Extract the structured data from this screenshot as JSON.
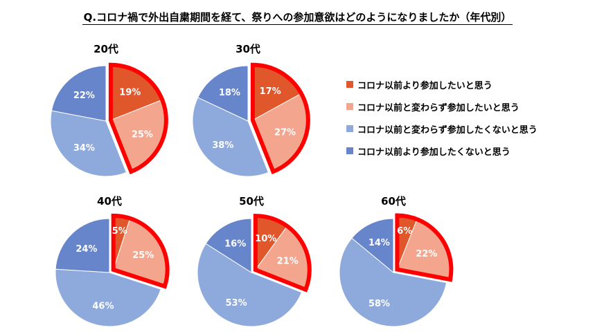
{
  "title": "Q.コロナ禍で外出自粛期間を経て、祭りへの参加意欲はどのようになりましたか（年代別）",
  "colors": {
    "series": [
      "#E0572B",
      "#F4A58E",
      "#8EA9DB",
      "#6685CA"
    ],
    "highlight": "#FF0000",
    "label_text": "#FFFFFF",
    "title_text": "#000000"
  },
  "legend": [
    "コロナ以前より参加したいと思う",
    "コロナ以前と変わらず参加したいと思う",
    "コロナ以前と変わらず参加したくないと思う",
    "コロナ以前より参加したくないと思う"
  ],
  "chart_data": [
    {
      "type": "pie",
      "title": "20代",
      "categories": [
        "コロナ以前より参加したいと思う",
        "コロナ以前と変わらず参加したいと思う",
        "コロナ以前と変わらず参加したくないと思う",
        "コロナ以前より参加したくないと思う"
      ],
      "values": [
        19,
        25,
        34,
        22
      ],
      "labels": [
        "19%",
        "25%",
        "34%",
        "22%"
      ]
    },
    {
      "type": "pie",
      "title": "30代",
      "categories": [
        "コロナ以前より参加したいと思う",
        "コロナ以前と変わらず参加したいと思う",
        "コロナ以前と変わらず参加したくないと思う",
        "コロナ以前より参加したくないと思う"
      ],
      "values": [
        17,
        27,
        38,
        18
      ],
      "labels": [
        "17%",
        "27%",
        "38%",
        "18%"
      ]
    },
    {
      "type": "pie",
      "title": "40代",
      "categories": [
        "コロナ以前より参加したいと思う",
        "コロナ以前と変わらず参加したいと思う",
        "コロナ以前と変わらず参加したくないと思う",
        "コロナ以前より参加したくないと思う"
      ],
      "values": [
        5,
        25,
        46,
        24
      ],
      "labels": [
        "5%",
        "25%",
        "46%",
        "24%"
      ]
    },
    {
      "type": "pie",
      "title": "50代",
      "categories": [
        "コロナ以前より参加したいと思う",
        "コロナ以前と変わらず参加したいと思う",
        "コロナ以前と変わらず参加したくないと思う",
        "コロナ以前より参加したくないと思う"
      ],
      "values": [
        10,
        21,
        53,
        16
      ],
      "labels": [
        "10%",
        "21%",
        "53%",
        "16%"
      ]
    },
    {
      "type": "pie",
      "title": "60代",
      "categories": [
        "コロナ以前より参加したいと思う",
        "コロナ以前と変わらず参加したいと思う",
        "コロナ以前と変わらず参加したくないと思う",
        "コロナ以前より参加したくないと思う"
      ],
      "values": [
        6,
        22,
        58,
        14
      ],
      "labels": [
        "6%",
        "22%",
        "58%",
        "14%"
      ]
    }
  ]
}
